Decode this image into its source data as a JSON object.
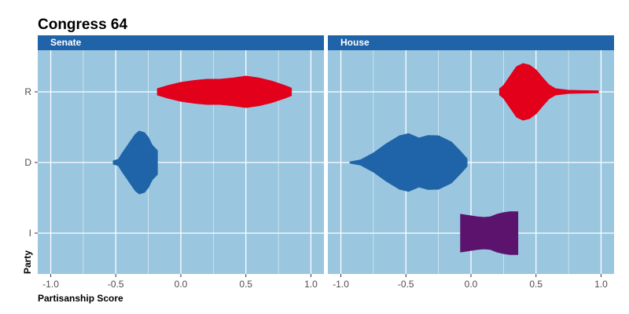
{
  "chart_data": {
    "type": "violin",
    "title": "Congress 64",
    "xlabel": "Partisanship Score",
    "ylabel": "Party",
    "xlim": [
      -1.1,
      1.1
    ],
    "x_ticks": [
      -1.0,
      -0.5,
      0.0,
      0.5,
      1.0
    ],
    "x_tick_labels": [
      "-1.0",
      "-0.5",
      "0.0",
      "0.5",
      "1.0"
    ],
    "categories": [
      "R",
      "D",
      "I"
    ],
    "grid": true,
    "colors": {
      "panel_bg": "#9ac6df",
      "strip_bg": "#1f64a8",
      "R": "#e3001b",
      "D": "#1f64a8",
      "I": "#5c136e"
    },
    "panels": [
      {
        "label": "Senate",
        "series": [
          {
            "category": "R",
            "x": [
              -0.18,
              -0.1,
              0.0,
              0.1,
              0.2,
              0.3,
              0.4,
              0.5,
              0.6,
              0.7,
              0.8,
              0.85
            ],
            "width": [
              0.1,
              0.2,
              0.3,
              0.36,
              0.4,
              0.4,
              0.44,
              0.5,
              0.44,
              0.34,
              0.2,
              0.12
            ]
          },
          {
            "category": "D",
            "x": [
              -0.52,
              -0.48,
              -0.45,
              -0.4,
              -0.35,
              -0.32,
              -0.28,
              -0.25,
              -0.22,
              -0.18
            ],
            "width": [
              0.05,
              0.1,
              0.3,
              0.6,
              0.9,
              1.0,
              0.95,
              0.8,
              0.55,
              0.38
            ]
          }
        ]
      },
      {
        "label": "House",
        "series": [
          {
            "category": "R",
            "x": [
              0.22,
              0.25,
              0.3,
              0.35,
              0.4,
              0.45,
              0.5,
              0.55,
              0.6,
              0.65,
              0.75,
              0.85,
              0.98
            ],
            "width": [
              0.1,
              0.2,
              0.5,
              0.8,
              0.9,
              0.85,
              0.7,
              0.45,
              0.22,
              0.1,
              0.05,
              0.04,
              0.03
            ]
          },
          {
            "category": "D",
            "x": [
              -0.93,
              -0.85,
              -0.75,
              -0.65,
              -0.55,
              -0.48,
              -0.4,
              -0.33,
              -0.25,
              -0.15,
              -0.08,
              -0.03
            ],
            "width": [
              0.02,
              0.08,
              0.3,
              0.6,
              0.85,
              0.92,
              0.78,
              0.86,
              0.85,
              0.65,
              0.35,
              0.12
            ]
          },
          {
            "category": "I",
            "x": [
              -0.08,
              -0.05,
              0.0,
              0.05,
              0.1,
              0.15,
              0.2,
              0.25,
              0.3,
              0.36
            ],
            "width": [
              0.6,
              0.58,
              0.55,
              0.52,
              0.5,
              0.52,
              0.6,
              0.65,
              0.68,
              0.68
            ]
          }
        ]
      }
    ]
  }
}
